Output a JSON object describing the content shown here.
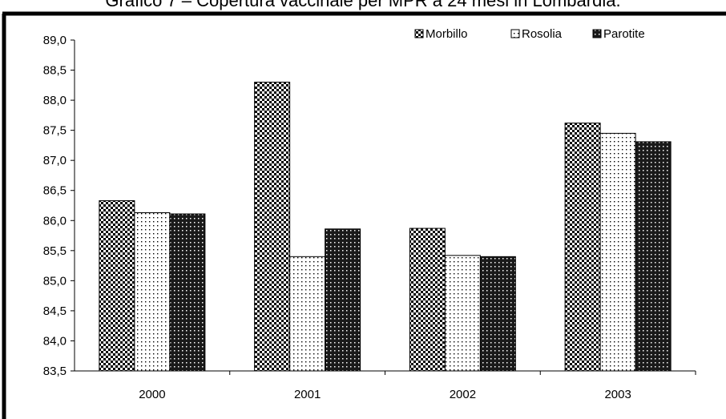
{
  "chart_data": {
    "type": "bar",
    "title": "Grafico 7 – Copertura vaccinale per MPR a 24 mesi in Lombardia.",
    "xlabel": "",
    "ylabel": "",
    "categories": [
      "2000",
      "2001",
      "2002",
      "2003"
    ],
    "series": [
      {
        "name": "Morbillo",
        "values": [
          86.33,
          88.3,
          85.87,
          87.62
        ]
      },
      {
        "name": "Rosolia",
        "values": [
          86.13,
          85.4,
          85.42,
          87.45
        ]
      },
      {
        "name": "Parotite",
        "values": [
          86.11,
          85.86,
          85.4,
          87.31
        ]
      }
    ],
    "ylim": [
      83.5,
      89.0
    ],
    "yticks": [
      "83,5",
      "84,0",
      "84,5",
      "85,0",
      "85,5",
      "86,0",
      "86,5",
      "87,0",
      "87,5",
      "88,0",
      "88,5",
      "89,0"
    ],
    "grid": false,
    "legend_position": "top-right"
  }
}
